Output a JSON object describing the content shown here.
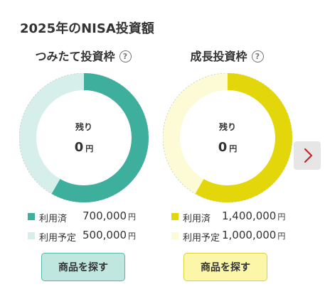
{
  "page_title": "2025年のNISA投資額",
  "help_icon_glyph": "?",
  "panels": [
    {
      "title": "つみたて投資枠",
      "help_icon": "question-circle-icon",
      "remaining_label": "残り",
      "remaining_value": "0",
      "currency": "円",
      "used_fraction": 0.583,
      "colors": {
        "used": "#3daf9c",
        "planned": "#d7efeb",
        "button_bg": "#bfe6df",
        "button_border": "#55b8a6"
      },
      "legend": [
        {
          "label": "利用済",
          "amount": "700,000"
        },
        {
          "label": "利用予定",
          "amount": "500,000"
        }
      ],
      "button_label": "商品を探す"
    },
    {
      "title": "成長投資枠",
      "help_icon": "question-circle-icon",
      "remaining_label": "残り",
      "remaining_value": "0",
      "currency": "円",
      "used_fraction": 0.583,
      "colors": {
        "used": "#e3d60a",
        "planned": "#fdfbd6",
        "button_bg": "#fcf7a8",
        "button_border": "#ddd040"
      },
      "legend": [
        {
          "label": "利用済",
          "amount": "1,400,000"
        },
        {
          "label": "利用予定",
          "amount": "1,000,000"
        }
      ],
      "button_label": "商品を探す"
    }
  ],
  "next_button": {
    "icon": "chevron-right-icon",
    "color": "#c0272d"
  }
}
